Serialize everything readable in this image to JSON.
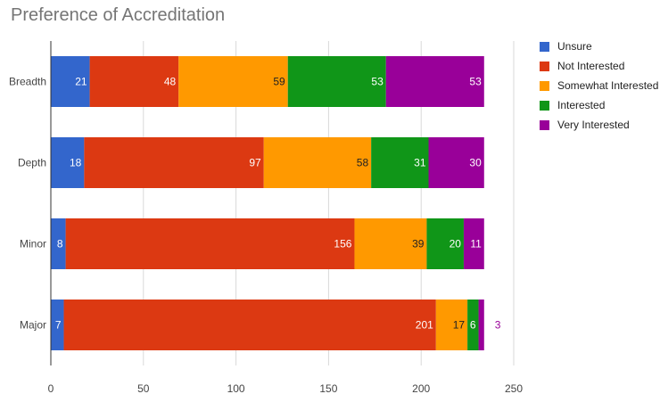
{
  "chart_data": {
    "type": "bar",
    "orientation": "horizontal",
    "stacked": true,
    "title": "Preference of Accreditation",
    "categories": [
      "Breadth",
      "Depth",
      "Minor",
      "Major"
    ],
    "series": [
      {
        "name": "Unsure",
        "color": "#3366cc",
        "values": [
          21,
          18,
          8,
          7
        ]
      },
      {
        "name": "Not Interested",
        "color": "#dc3912",
        "values": [
          48,
          97,
          156,
          201
        ]
      },
      {
        "name": "Somewhat Interested",
        "color": "#ff9900",
        "values": [
          59,
          58,
          39,
          17
        ]
      },
      {
        "name": "Interested",
        "color": "#109618",
        "values": [
          53,
          31,
          20,
          6
        ]
      },
      {
        "name": "Very Interested",
        "color": "#990099",
        "values": [
          53,
          30,
          11,
          3
        ]
      }
    ],
    "xlim": [
      0,
      250
    ],
    "xticks": [
      0,
      50,
      100,
      150,
      200,
      250
    ],
    "grid": true,
    "legend_position": "right",
    "xlabel": "",
    "ylabel": ""
  }
}
